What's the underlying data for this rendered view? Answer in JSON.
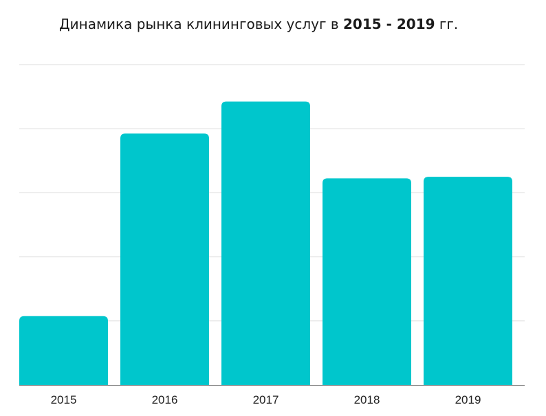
{
  "chart_data": {
    "type": "bar",
    "title_prefix": "Динамика рынка клининговых услуг в ",
    "title_years": "2015 - 2019",
    "title_suffix": " гг.",
    "categories": [
      "2015",
      "2016",
      "2017",
      "2018",
      "2019"
    ],
    "values": [
      21.5,
      78.5,
      88.5,
      64.5,
      65.0
    ],
    "ylim": [
      0,
      100
    ],
    "gridlines": [
      20,
      40,
      60,
      80,
      100
    ],
    "grid": true,
    "y_tick_labels_shown": false,
    "xlabel": "",
    "ylabel": "",
    "bar_color": "#00c6cc",
    "grid_color": "#dcdcdc",
    "baseline_color": "#8a8a8a"
  }
}
